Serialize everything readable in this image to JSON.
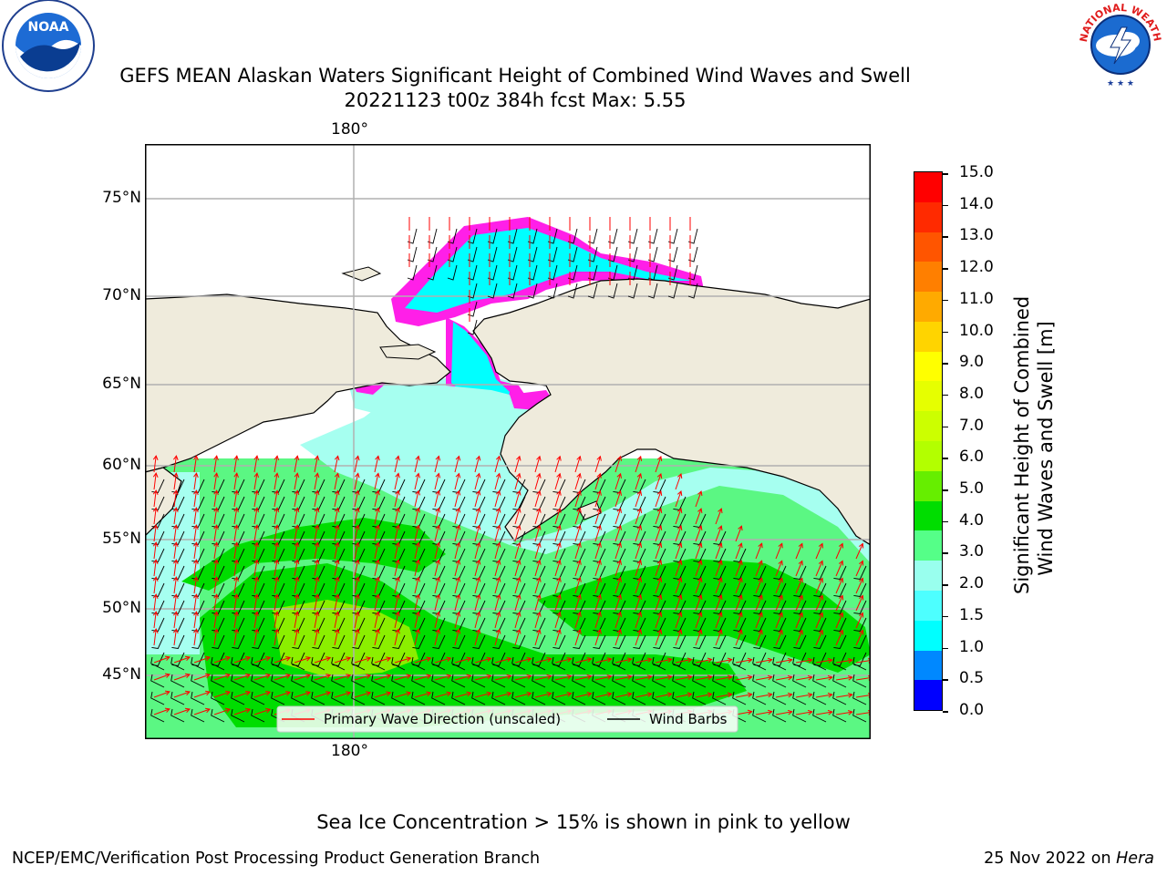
{
  "title_line1": "GEFS MEAN Alaskan Waters Significant Height of Combined Wind Waves and Swell",
  "title_line2": "20221123 t00z 384h fcst   Max: 5.55",
  "logos": {
    "noaa": "NOAA",
    "nws": "NATIONAL WEATHER SERVICE"
  },
  "map": {
    "lat_labels": [
      "75°N",
      "70°N",
      "65°N",
      "60°N",
      "55°N",
      "50°N",
      "45°N"
    ],
    "lon_label_top": "180°",
    "lon_label_bottom": "180°",
    "legend": {
      "wave_dir": "Primary Wave Direction (unscaled)",
      "wind_barbs": "Wind Barbs"
    },
    "colors": {
      "land": "#efebdc",
      "ocean": "#5bf783",
      "grid": "#b0b0b0",
      "arrow": "#ff0000",
      "barb": "#000000",
      "ice": "#ff1fe8"
    }
  },
  "colorbar": {
    "label_line1": "Significant Height of Combined",
    "label_line2": "Wind Waves and Swell [m]",
    "ticks": [
      "15.0",
      "14.0",
      "13.0",
      "12.0",
      "11.0",
      "10.0",
      "9.0",
      "8.0",
      "7.0",
      "6.0",
      "5.0",
      "4.0",
      "3.0",
      "2.0",
      "1.5",
      "1.0",
      "0.5",
      "0.0"
    ],
    "colors_top_to_bottom": [
      "#ff0000",
      "#ff2a00",
      "#ff5500",
      "#ff7f00",
      "#ffaa00",
      "#ffd400",
      "#ffff00",
      "#e6ff00",
      "#ccff00",
      "#b3ff00",
      "#66ee00",
      "#00dd00",
      "#55ff88",
      "#99ffee",
      "#4dffff",
      "#00ffff",
      "#0088ff",
      "#0000ff"
    ]
  },
  "footer": {
    "sea_ice_note": "Sea Ice Concentration > 15% is shown in pink to yellow",
    "branch": "NCEP/EMC/Verification Post Processing Product Generation Branch",
    "date_prefix": "25 Nov 2022 on ",
    "host": "Hera"
  }
}
